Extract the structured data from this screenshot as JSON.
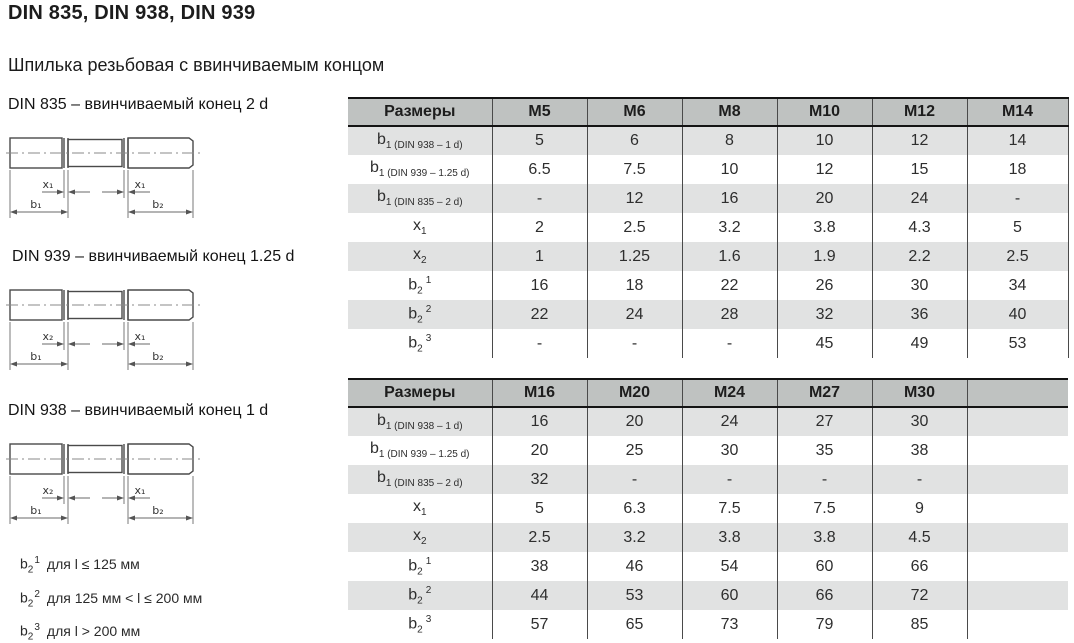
{
  "page": {
    "title": "DIN 835, DIN 938, DIN 939",
    "subtitle": "Шпилька резьбовая с ввинчиваемым концом"
  },
  "colors": {
    "table_header_bg": "#bfc2c1",
    "table_stripe_bg": "#e1e2e2",
    "table_border": "#141414",
    "table_grid": "#4a4a4a",
    "text": "#1c1c1c"
  },
  "drawings": [
    {
      "caption": "DIN 835 – ввинчиваемый конец 2 d",
      "dim_left": "x₁",
      "dim_right": "x₁",
      "dim_b1": "b₁",
      "dim_b2": "b₂"
    },
    {
      "caption": "DIN 939 – ввинчиваемый конец 1.25 d",
      "dim_left": "x₂",
      "dim_right": "x₁",
      "dim_b1": "b₁",
      "dim_b2": "b₂"
    },
    {
      "caption": "DIN 938 – ввинчиваемый конец 1 d",
      "dim_left": "x₂",
      "dim_right": "x₁",
      "dim_b1": "b₁",
      "dim_b2": "b₂"
    }
  ],
  "footnotes": [
    {
      "base": "b",
      "sub": "2",
      "sup": "1",
      "text": "для l ≤ 125 мм"
    },
    {
      "base": "b",
      "sub": "2",
      "sup": "2",
      "text": "для 125 мм < l ≤ 200 мм"
    },
    {
      "base": "b",
      "sub": "2",
      "sup": "3",
      "text": "для l > 200 мм"
    }
  ],
  "tables": [
    {
      "columns": [
        "Размеры",
        "M5",
        "M6",
        "M8",
        "M10",
        "M12",
        "M14"
      ],
      "rows": [
        {
          "label": {
            "base": "b",
            "sub": "1 (DIN 938 – 1 d)",
            "sup": ""
          },
          "values": [
            "5",
            "6",
            "8",
            "10",
            "12",
            "14"
          ]
        },
        {
          "label": {
            "base": "b",
            "sub": "1 (DIN 939 – 1.25 d)",
            "sup": ""
          },
          "values": [
            "6.5",
            "7.5",
            "10",
            "12",
            "15",
            "18"
          ]
        },
        {
          "label": {
            "base": "b",
            "sub": "1 (DIN 835 – 2 d)",
            "sup": ""
          },
          "values": [
            "-",
            "12",
            "16",
            "20",
            "24",
            "-"
          ]
        },
        {
          "label": {
            "base": "x",
            "sub": "1",
            "sup": ""
          },
          "values": [
            "2",
            "2.5",
            "3.2",
            "3.8",
            "4.3",
            "5"
          ]
        },
        {
          "label": {
            "base": "x",
            "sub": "2",
            "sup": ""
          },
          "values": [
            "1",
            "1.25",
            "1.6",
            "1.9",
            "2.2",
            "2.5"
          ]
        },
        {
          "label": {
            "base": "b",
            "sub": "2",
            "sup": "1"
          },
          "values": [
            "16",
            "18",
            "22",
            "26",
            "30",
            "34"
          ]
        },
        {
          "label": {
            "base": "b",
            "sub": "2",
            "sup": "2"
          },
          "values": [
            "22",
            "24",
            "28",
            "32",
            "36",
            "40"
          ]
        },
        {
          "label": {
            "base": "b",
            "sub": "2",
            "sup": "3"
          },
          "values": [
            "-",
            "-",
            "-",
            "45",
            "49",
            "53"
          ]
        }
      ]
    },
    {
      "columns": [
        "Размеры",
        "M16",
        "M20",
        "M24",
        "M27",
        "M30",
        ""
      ],
      "rows": [
        {
          "label": {
            "base": "b",
            "sub": "1 (DIN 938 – 1 d)",
            "sup": ""
          },
          "values": [
            "16",
            "20",
            "24",
            "27",
            "30",
            ""
          ]
        },
        {
          "label": {
            "base": "b",
            "sub": "1 (DIN 939 – 1.25 d)",
            "sup": ""
          },
          "values": [
            "20",
            "25",
            "30",
            "35",
            "38",
            ""
          ]
        },
        {
          "label": {
            "base": "b",
            "sub": "1 (DIN 835 – 2 d)",
            "sup": ""
          },
          "values": [
            "32",
            "-",
            "-",
            "-",
            "-",
            ""
          ]
        },
        {
          "label": {
            "base": "x",
            "sub": "1",
            "sup": ""
          },
          "values": [
            "5",
            "6.3",
            "7.5",
            "7.5",
            "9",
            ""
          ]
        },
        {
          "label": {
            "base": "x",
            "sub": "2",
            "sup": ""
          },
          "values": [
            "2.5",
            "3.2",
            "3.8",
            "3.8",
            "4.5",
            ""
          ]
        },
        {
          "label": {
            "base": "b",
            "sub": "2",
            "sup": "1"
          },
          "values": [
            "38",
            "46",
            "54",
            "60",
            "66",
            ""
          ]
        },
        {
          "label": {
            "base": "b",
            "sub": "2",
            "sup": "2"
          },
          "values": [
            "44",
            "53",
            "60",
            "66",
            "72",
            ""
          ]
        },
        {
          "label": {
            "base": "b",
            "sub": "2",
            "sup": "3"
          },
          "values": [
            "57",
            "65",
            "73",
            "79",
            "85",
            ""
          ]
        }
      ]
    }
  ]
}
